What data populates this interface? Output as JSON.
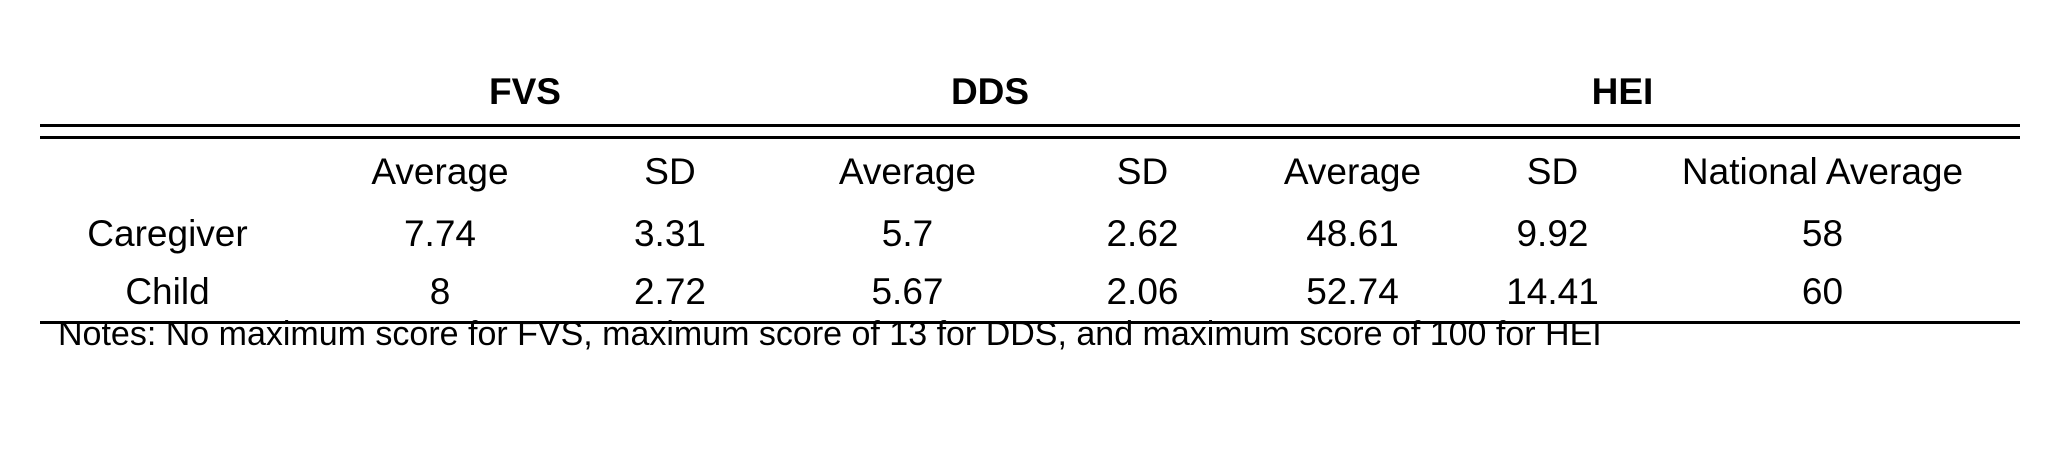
{
  "table": {
    "groups": {
      "fvs": "FVS",
      "dds": "DDS",
      "hei": "HEI"
    },
    "subheaders": {
      "fvs_avg": "Average",
      "fvs_sd": "SD",
      "dds_avg": "Average",
      "dds_sd": "SD",
      "hei_avg": "Average",
      "hei_sd": "SD",
      "hei_national": "National Average"
    },
    "rows": [
      {
        "label": "Caregiver",
        "fvs_avg": "7.74",
        "fvs_sd": "3.31",
        "dds_avg": "5.7",
        "dds_sd": "2.62",
        "hei_avg": "48.61",
        "hei_sd": "9.92",
        "hei_national": "58"
      },
      {
        "label": "Child",
        "fvs_avg": "8",
        "fvs_sd": "2.72",
        "dds_avg": "5.67",
        "dds_sd": "2.06",
        "hei_avg": "52.74",
        "hei_sd": "14.41",
        "hei_national": "60"
      }
    ]
  },
  "notes": "Notes: No maximum score for FVS, maximum score of 13 for DDS, and maximum score of 100 for HEI"
}
